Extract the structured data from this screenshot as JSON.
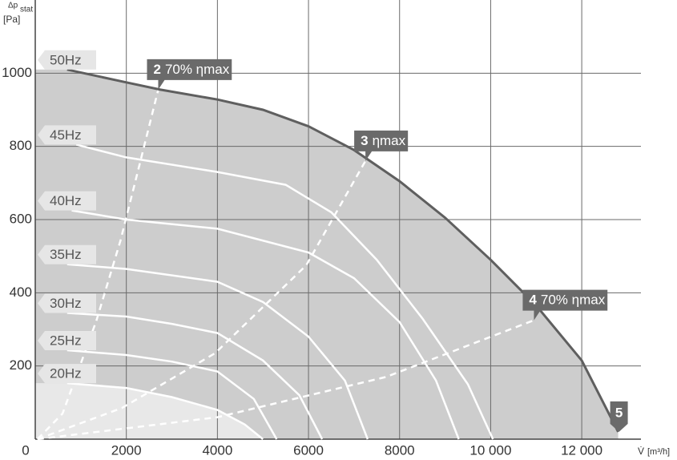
{
  "chart_data": {
    "type": "line",
    "x_label_symbol": "V̇",
    "x_label_unit": "[m³/h]",
    "y_label_symbol": "Δp",
    "y_label_subscript": "stat",
    "y_label_unit": "[Pa]",
    "xlim": [
      0,
      13300
    ],
    "ylim": [
      0,
      1200
    ],
    "xticks": [
      0,
      2000,
      4000,
      6000,
      8000,
      {
        "value": 10000,
        "label": "10 000"
      },
      {
        "value": 12000,
        "label": "12 000"
      }
    ],
    "yticks": [
      200,
      400,
      600,
      800,
      1000
    ],
    "grid": true,
    "series": [
      {
        "name": "50Hz",
        "color": "#5f5f5f",
        "end_label": "5",
        "x": [
          700,
          2000,
          2750,
          4000,
          5000,
          6000,
          7000,
          8000,
          9000,
          10000,
          11000,
          12000,
          12800
        ],
        "values": [
          1010,
          975,
          955,
          928,
          900,
          855,
          790,
          705,
          605,
          490,
          365,
          215,
          20
        ]
      },
      {
        "name": "45Hz",
        "color": "#ffffff",
        "x": [
          900,
          2000,
          4000,
          5500,
          6500,
          7500,
          8500,
          9500,
          10050
        ],
        "values": [
          805,
          770,
          730,
          695,
          620,
          490,
          330,
          150,
          0
        ]
      },
      {
        "name": "40Hz",
        "color": "#ffffff",
        "x": [
          800,
          2000,
          4000,
          6000,
          7000,
          8000,
          8800,
          9300
        ],
        "values": [
          625,
          600,
          575,
          510,
          440,
          320,
          160,
          0
        ]
      },
      {
        "name": "35Hz",
        "color": "#ffffff",
        "x": [
          700,
          2000,
          4000,
          5000,
          6000,
          6800,
          7300
        ],
        "values": [
          478,
          465,
          430,
          375,
          280,
          160,
          0
        ]
      },
      {
        "name": "30Hz",
        "color": "#ffffff",
        "x": [
          700,
          2000,
          3000,
          4000,
          5000,
          5800,
          6300
        ],
        "values": [
          345,
          335,
          315,
          290,
          215,
          120,
          0
        ]
      },
      {
        "name": "25Hz",
        "color": "#ffffff",
        "x": [
          700,
          2000,
          3000,
          4000,
          4800,
          5300
        ],
        "values": [
          243,
          230,
          212,
          185,
          110,
          0
        ]
      },
      {
        "name": "20Hz",
        "color": "#ffffff",
        "x": [
          700,
          2000,
          3000,
          4000,
          4600,
          5000
        ],
        "values": [
          153,
          140,
          115,
          80,
          40,
          0
        ]
      }
    ],
    "efficiency_lines": [
      {
        "number": "2",
        "label": "70% ηmax",
        "color": "#ffffff",
        "x": [
          50,
          600,
          1340,
          1870,
          2310,
          2700
        ],
        "values": [
          0,
          70,
          323,
          542,
          760,
          955
        ]
      },
      {
        "number": "3",
        "label": "ηmax",
        "color": "#ffffff",
        "x": [
          50,
          1900,
          3950,
          5950,
          7250
        ],
        "values": [
          0,
          85,
          235,
          475,
          760
        ]
      },
      {
        "number": "4",
        "label": "70% ηmax",
        "color": "#ffffff",
        "x": [
          50,
          4000,
          7700,
          10950
        ],
        "values": [
          0,
          60,
          170,
          325
        ]
      }
    ]
  }
}
